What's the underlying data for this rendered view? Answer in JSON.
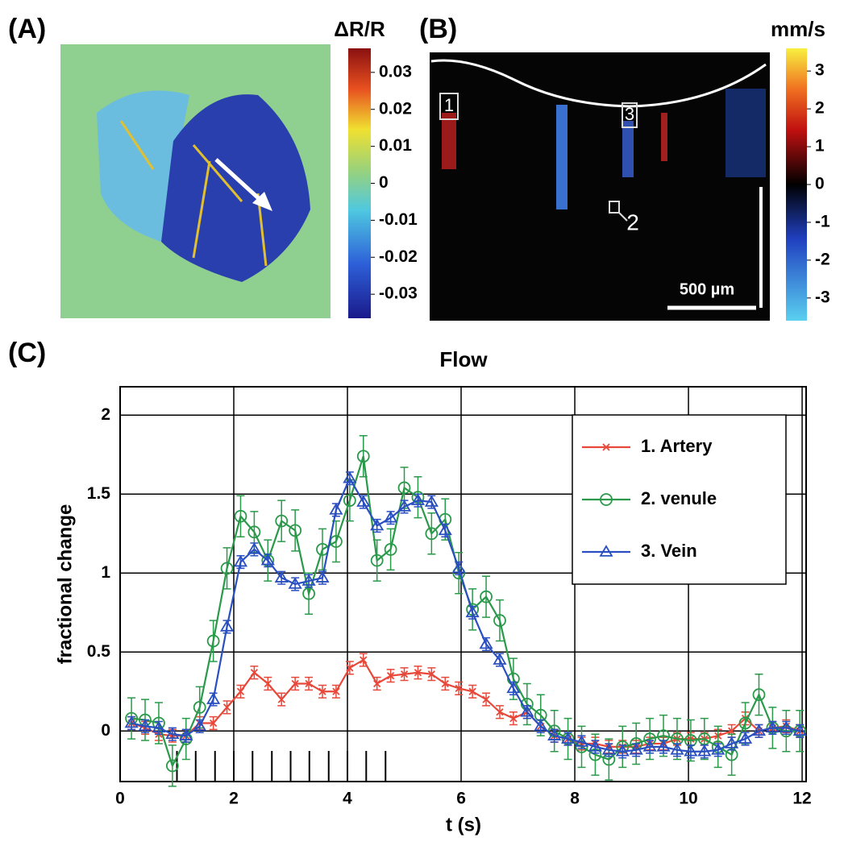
{
  "chart_data": [
    {
      "type": "image",
      "panel": "(A)",
      "colorbar": {
        "label": "ΔR/R",
        "lim": [
          -0.0365,
          0.0365
        ],
        "ticks": [
          -0.03,
          -0.02,
          -0.01,
          0,
          0.01,
          0.02,
          0.03
        ]
      }
    },
    {
      "type": "image",
      "panel": "(B)",
      "regions": [
        "1",
        "2",
        "3"
      ],
      "scalebar": "500 µm",
      "colorbar": {
        "label": "mm/s",
        "lim": [
          -3.6,
          3.6
        ],
        "ticks": [
          -3,
          -2,
          -1,
          0,
          1,
          2,
          3
        ]
      }
    },
    {
      "type": "line",
      "panel": "(C)",
      "title": "Flow",
      "xlabel": "t (s)",
      "ylabel": "fractional change",
      "xlim": [
        0,
        12.07
      ],
      "ylim": [
        -0.32,
        2.18
      ],
      "xticks": [
        0,
        2,
        4,
        6,
        8,
        10,
        12
      ],
      "yticks": [
        0,
        0.5,
        1,
        1.5,
        2
      ],
      "grid": true,
      "legend": "upper right",
      "x": [
        0.2,
        0.44,
        0.68,
        0.92,
        1.16,
        1.4,
        1.64,
        1.88,
        2.12,
        2.36,
        2.6,
        2.84,
        3.08,
        3.32,
        3.56,
        3.8,
        4.04,
        4.28,
        4.52,
        4.76,
        5.0,
        5.24,
        5.48,
        5.72,
        5.96,
        6.2,
        6.44,
        6.68,
        6.92,
        7.16,
        7.4,
        7.64,
        7.88,
        8.12,
        8.36,
        8.6,
        8.84,
        9.08,
        9.32,
        9.56,
        9.8,
        10.04,
        10.28,
        10.52,
        10.76,
        11.0,
        11.24,
        11.48,
        11.72,
        11.96
      ],
      "stimulus": [
        1.0,
        1.33,
        1.67,
        2.0,
        2.33,
        2.67,
        3.0,
        3.33,
        3.67,
        4.0,
        4.33,
        4.67
      ],
      "series": [
        {
          "name": "1. Artery",
          "color": "#e8483a",
          "marker": "x",
          "error": 0.04,
          "values": [
            0.05,
            0.02,
            -0.02,
            -0.03,
            -0.03,
            0.05,
            0.05,
            0.15,
            0.25,
            0.37,
            0.3,
            0.2,
            0.3,
            0.3,
            0.25,
            0.25,
            0.4,
            0.45,
            0.3,
            0.35,
            0.36,
            0.37,
            0.36,
            0.3,
            0.27,
            0.25,
            0.2,
            0.12,
            0.08,
            0.12,
            0.03,
            -0.03,
            -0.05,
            -0.08,
            -0.08,
            -0.1,
            -0.1,
            -0.1,
            -0.08,
            -0.08,
            -0.05,
            -0.05,
            -0.05,
            -0.03,
            0.0,
            0.08,
            0.0,
            0.02,
            0.03,
            0.0
          ]
        },
        {
          "name": "2. venule",
          "color": "#2a9a4a",
          "marker": "o",
          "error": 0.13,
          "values": [
            0.08,
            0.07,
            0.05,
            -0.22,
            -0.05,
            0.15,
            0.57,
            1.03,
            1.36,
            1.26,
            1.08,
            1.33,
            1.27,
            0.87,
            1.15,
            1.2,
            1.46,
            1.74,
            1.08,
            1.15,
            1.54,
            1.48,
            1.25,
            1.34,
            1.0,
            0.77,
            0.85,
            0.7,
            0.33,
            0.17,
            0.1,
            0.0,
            -0.05,
            -0.1,
            -0.15,
            -0.18,
            -0.1,
            -0.08,
            -0.05,
            -0.03,
            -0.05,
            -0.06,
            -0.05,
            -0.1,
            -0.15,
            0.05,
            0.23,
            0.02,
            0.0,
            0.0
          ]
        },
        {
          "name": "3. Vein",
          "color": "#2a4fc0",
          "marker": "^",
          "error": 0.04,
          "values": [
            0.05,
            0.03,
            0.02,
            -0.02,
            -0.03,
            0.03,
            0.2,
            0.66,
            1.07,
            1.15,
            1.08,
            0.97,
            0.93,
            0.95,
            0.97,
            1.4,
            1.6,
            1.45,
            1.3,
            1.35,
            1.42,
            1.46,
            1.45,
            1.27,
            1.03,
            0.75,
            0.55,
            0.45,
            0.27,
            0.12,
            0.03,
            -0.03,
            -0.05,
            -0.07,
            -0.1,
            -0.12,
            -0.13,
            -0.12,
            -0.1,
            -0.1,
            -0.12,
            -0.13,
            -0.13,
            -0.12,
            -0.08,
            -0.05,
            0.0,
            0.02,
            0.02,
            0.0
          ]
        }
      ]
    }
  ]
}
